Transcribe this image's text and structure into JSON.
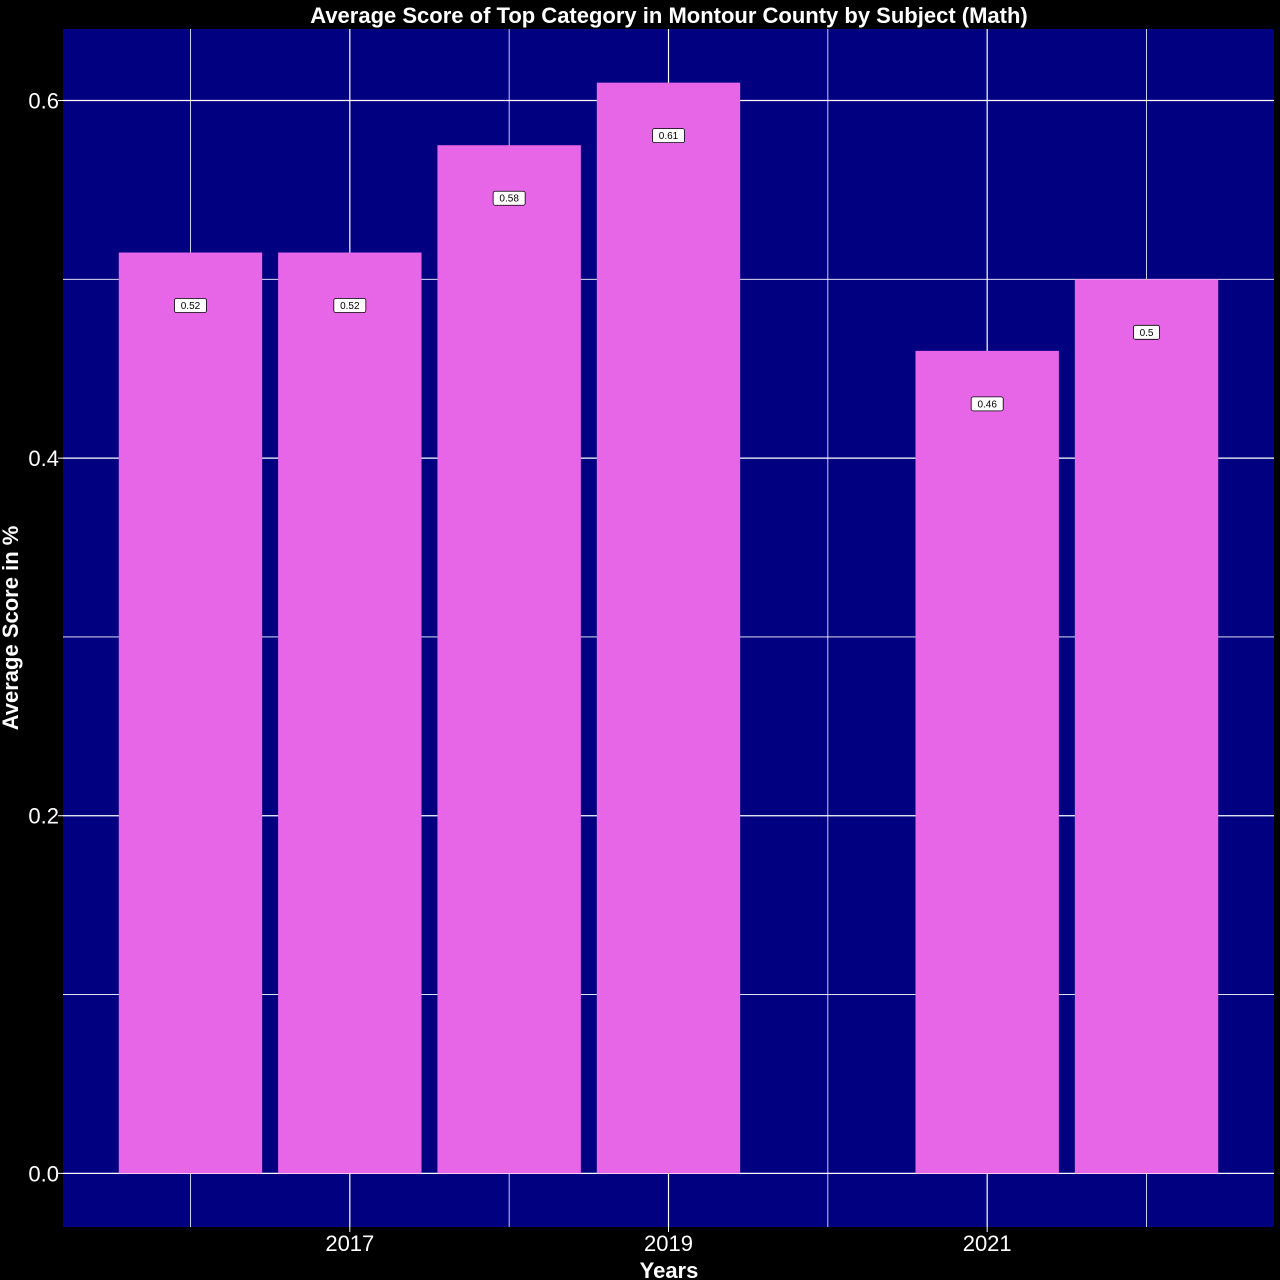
{
  "colors": {
    "page_background": "#000000",
    "panel_background": "#000080",
    "grid": "#ffffff",
    "bar_fill": "#e766e8",
    "label_fill": "#ffffff",
    "text": "#ffffff"
  },
  "chart_data": {
    "type": "bar",
    "title": "Average Score of Top Category in Montour County by Subject (Math)",
    "xlabel": "Years",
    "ylabel": "Average Score in %",
    "x": [
      2016,
      2017,
      2018,
      2019,
      2021,
      2022
    ],
    "values": [
      0.515,
      0.515,
      0.575,
      0.61,
      0.46,
      0.5
    ],
    "data_labels": [
      "0.52",
      "0.52",
      "0.58",
      "0.61",
      "0.46",
      "0.5"
    ],
    "xlim": [
      2015.2,
      2022.8
    ],
    "ylim": [
      -0.03,
      0.64
    ],
    "x_ticks": [
      2017,
      2019,
      2021
    ],
    "x_tick_labels": [
      "2017",
      "2019",
      "2021"
    ],
    "y_ticks": [
      0.0,
      0.2,
      0.4,
      0.6
    ],
    "y_tick_labels": [
      "0.0",
      "0.2",
      "0.4",
      "0.6"
    ],
    "x_minor_gridlines": [
      2016,
      2018,
      2020,
      2022
    ],
    "y_minor_gridlines": [
      0.1,
      0.3,
      0.5
    ],
    "grid": true,
    "legend": "none"
  }
}
